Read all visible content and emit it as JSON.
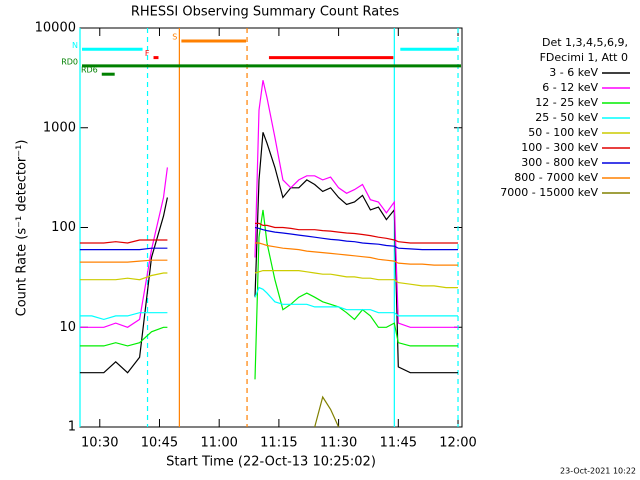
{
  "chart_data": {
    "type": "line",
    "title": "RHESSI Observing Summary Count Rates",
    "x_label": "Start Time (22-Oct-13 10:25:02)",
    "y_label": "Count Rate (s⁻¹ detector⁻¹)",
    "footer": "23-Oct-2021 10:22",
    "legend_header": [
      "Det 1,3,4,5,6,9,",
      "FDecimi 1, Att 0"
    ],
    "log_y": true,
    "xlim": [
      "10:25:02",
      "12:01"
    ],
    "xticks": [
      "10:30",
      "10:45",
      "11:00",
      "11:15",
      "11:30",
      "11:45",
      "12:00"
    ],
    "ylim": [
      1,
      10000
    ],
    "yticks": [
      1,
      10,
      100,
      1000,
      10000
    ],
    "x": [
      "10:25",
      "10:28",
      "10:31",
      "10:34",
      "10:37",
      "10:40",
      "10:43",
      "10:46",
      "10:47",
      "10:55",
      "11:09",
      "11:10",
      "11:11",
      "11:12",
      "11:14",
      "11:16",
      "11:18",
      "11:20",
      "11:22",
      "11:24",
      "11:26",
      "11:28",
      "11:30",
      "11:32",
      "11:34",
      "11:36",
      "11:38",
      "11:40",
      "11:42",
      "11:44",
      "11:45",
      "11:48",
      "11:51",
      "11:54",
      "11:57",
      "12:00"
    ],
    "series": [
      {
        "name": "3 - 6 keV",
        "color": "#000000",
        "values": [
          3.5,
          3.5,
          3.5,
          4.5,
          3.5,
          5,
          50,
          130,
          200,
          null,
          20,
          300,
          900,
          700,
          400,
          200,
          250,
          250,
          300,
          270,
          230,
          250,
          200,
          170,
          180,
          210,
          150,
          160,
          120,
          150,
          4,
          3.5,
          3.5,
          3.5,
          3.5,
          3.5
        ]
      },
      {
        "name": "6 - 12 keV",
        "color": "#ff00ff",
        "values": [
          10,
          10,
          10,
          11,
          10,
          12,
          60,
          200,
          400,
          null,
          50,
          1500,
          3000,
          2000,
          800,
          300,
          250,
          300,
          330,
          330,
          300,
          320,
          250,
          220,
          240,
          270,
          190,
          180,
          140,
          180,
          11,
          10,
          10,
          10,
          10,
          10
        ]
      },
      {
        "name": "12 - 25 keV",
        "color": "#00ee00",
        "values": [
          6.5,
          6.5,
          6.5,
          7,
          6.5,
          7,
          9,
          10,
          10,
          null,
          3,
          80,
          150,
          70,
          30,
          15,
          17,
          20,
          22,
          20,
          18,
          17,
          16,
          14,
          12,
          15,
          13,
          10,
          10,
          11,
          7,
          6.5,
          6.5,
          6.5,
          6.5,
          6.5
        ]
      },
      {
        "name": "25 - 50 keV",
        "color": "#00ffff",
        "values": [
          13,
          13,
          12,
          13,
          13,
          14,
          14,
          14,
          14,
          null,
          20,
          25,
          24,
          22,
          18,
          17,
          17,
          17,
          17,
          16,
          16,
          16,
          16,
          15,
          15,
          15,
          15,
          14,
          14,
          14,
          13,
          13,
          13,
          13,
          13,
          13
        ]
      },
      {
        "name": "50 - 100 keV",
        "color": "#cccc00",
        "values": [
          30,
          30,
          30,
          30,
          31,
          30,
          33,
          35,
          35,
          null,
          35,
          36,
          37,
          37,
          37,
          37,
          37,
          37,
          36,
          35,
          34,
          34,
          33,
          32,
          32,
          31,
          31,
          30,
          30,
          30,
          28,
          27,
          26,
          26,
          25,
          25
        ]
      },
      {
        "name": "100 - 300 keV",
        "color": "#e00000",
        "values": [
          70,
          70,
          70,
          72,
          70,
          75,
          75,
          75,
          75,
          null,
          110,
          110,
          105,
          105,
          100,
          100,
          98,
          95,
          95,
          95,
          93,
          92,
          90,
          88,
          87,
          85,
          83,
          80,
          78,
          75,
          72,
          70,
          70,
          70,
          70,
          70
        ]
      },
      {
        "name": "300 - 800 keV",
        "color": "#0000e0",
        "values": [
          60,
          60,
          60,
          60,
          60,
          60,
          62,
          62,
          62,
          null,
          100,
          98,
          95,
          93,
          90,
          88,
          86,
          84,
          82,
          80,
          78,
          76,
          75,
          73,
          72,
          70,
          69,
          68,
          66,
          65,
          62,
          61,
          60,
          60,
          60,
          60
        ]
      },
      {
        "name": "800 - 7000 keV",
        "color": "#ff8000",
        "values": [
          45,
          45,
          45,
          45,
          45,
          46,
          47,
          47,
          47,
          null,
          70,
          70,
          68,
          66,
          64,
          62,
          61,
          60,
          58,
          57,
          56,
          55,
          54,
          53,
          52,
          51,
          50,
          48,
          47,
          46,
          44,
          43,
          43,
          42,
          42,
          42
        ]
      },
      {
        "name": "7000 - 15000 keV",
        "color": "#808000",
        "values": [
          null,
          null,
          null,
          null,
          null,
          null,
          null,
          null,
          null,
          null,
          null,
          null,
          null,
          null,
          null,
          null,
          null,
          null,
          null,
          1,
          2,
          1.5,
          1,
          null,
          null,
          null,
          null,
          null,
          null,
          null,
          null,
          null,
          null,
          null,
          null,
          null
        ]
      }
    ],
    "vlines": [
      {
        "x": "10:25:02",
        "color": "#00ffff",
        "dashed": false
      },
      {
        "x": "10:42",
        "color": "#00ffff",
        "dashed": true
      },
      {
        "x": "10:50",
        "color": "#ff8000",
        "dashed": false
      },
      {
        "x": "11:07",
        "color": "#ff8000",
        "dashed": true
      },
      {
        "x": "11:44",
        "color": "#00ffff",
        "dashed": false
      },
      {
        "x": "12:00",
        "color": "#00ffff",
        "dashed": true
      }
    ],
    "flags": [
      {
        "label": "N",
        "color": "#00ffff",
        "level": 1,
        "ranges": [
          [
            "10:25:02",
            "10:41"
          ],
          [
            "11:45",
            "12:00"
          ]
        ]
      },
      {
        "label": "S",
        "color": "#ff8000",
        "level": 0,
        "ranges": [
          [
            "10:50",
            "11:07"
          ]
        ]
      },
      {
        "label": "F",
        "color": "#ff0000",
        "level": 2,
        "ranges": [
          [
            "10:43",
            "10:45"
          ],
          [
            "11:12",
            "11:44"
          ]
        ]
      },
      {
        "label": "RD0",
        "color": "#008000",
        "level": 3,
        "ranges": [
          [
            "10:25:02",
            "12:01"
          ]
        ]
      },
      {
        "label": "RD6",
        "color": "#008000",
        "level": 4,
        "ranges": [
          [
            "10:30",
            "10:34"
          ]
        ]
      }
    ]
  }
}
